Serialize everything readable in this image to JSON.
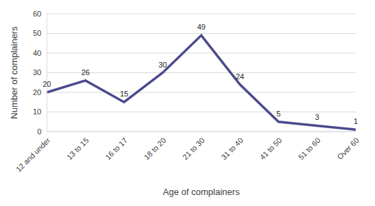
{
  "chart_data": {
    "type": "line",
    "x_label": "Age of complainers",
    "y_label": "Number of complainers",
    "categories": [
      "12 and under",
      "13 to 15",
      "16 to 17",
      "18 to 20",
      "21 to 30",
      "31 to 40",
      "41 to 50",
      "51 to 60",
      "Over 60"
    ],
    "values": [
      20,
      26,
      15,
      30,
      49,
      24,
      5,
      3,
      1
    ],
    "color": "#4b4a8c",
    "ylim": [
      0,
      60
    ],
    "yticks": [
      0,
      10,
      20,
      30,
      40,
      50,
      60
    ],
    "grid": true,
    "data_labels": true
  }
}
